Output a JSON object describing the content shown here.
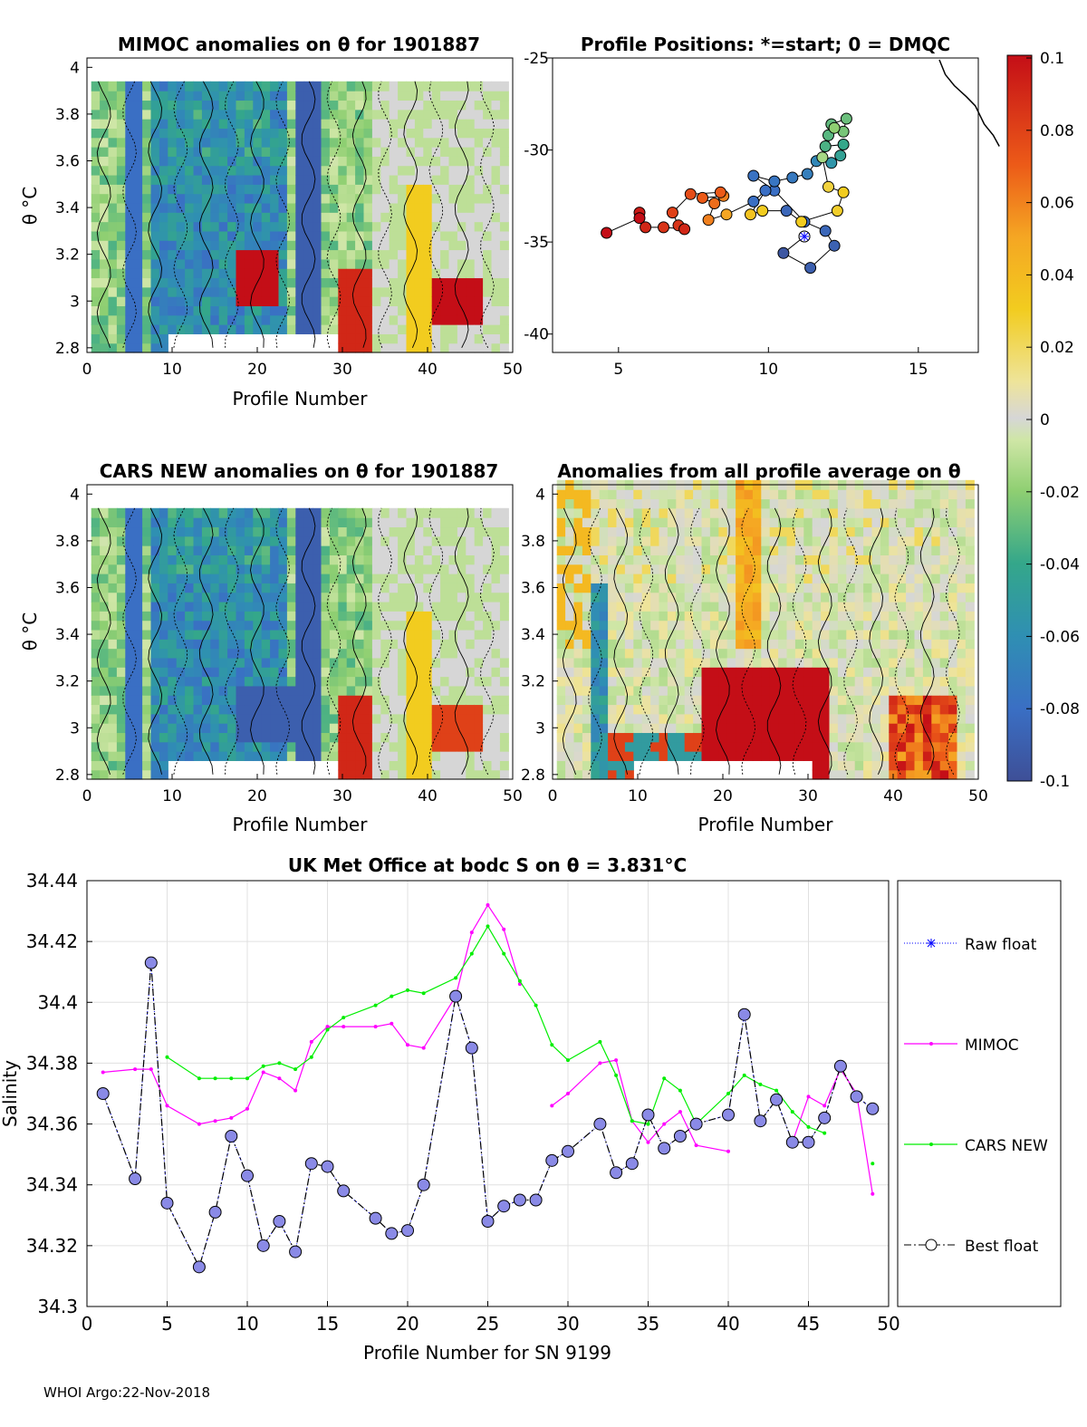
{
  "colors": {
    "raw_float": "#0000ff",
    "mimoc": "#ff00ff",
    "cars": "#00ee00",
    "best": "#000000",
    "marker_fill": "#8a8ae6"
  },
  "footer": "WHOI Argo:22-Nov-2018",
  "panels": {
    "mimoc": {
      "title": "MIMOC anomalies on θ  for 1901887",
      "xlabel": "Profile Number",
      "ylabel": "θ °C",
      "xticks": [
        "0",
        "10",
        "20",
        "30",
        "40",
        "50"
      ],
      "yticks": [
        "4",
        "3.8",
        "3.6",
        "3.4",
        "3.2",
        "3",
        "2.8"
      ]
    },
    "positions": {
      "title": "Profile Positions: *=start; 0 = DMQC",
      "xticks": [
        "5",
        "10",
        "15"
      ],
      "yticks": [
        "-25",
        "-30",
        "-35",
        "-40"
      ]
    },
    "cars": {
      "title": "CARS NEW anomalies on θ for 1901887",
      "xlabel": "Profile Number",
      "ylabel": "θ °C",
      "xticks": [
        "0",
        "10",
        "20",
        "30",
        "40",
        "50"
      ],
      "yticks": [
        "4",
        "3.8",
        "3.6",
        "3.4",
        "3.2",
        "3",
        "2.8"
      ]
    },
    "avg": {
      "title": "Anomalies from all profile average on θ",
      "xlabel": "Profile Number",
      "xticks": [
        "0",
        "10",
        "20",
        "30",
        "40",
        "50"
      ],
      "yticks": [
        "4",
        "3.8",
        "3.6",
        "3.4",
        "3.2",
        "3",
        "2.8"
      ]
    }
  },
  "colorbar": {
    "ticks": [
      "0.1",
      "0.08",
      "0.06",
      "0.04",
      "0.02",
      "0",
      "-0.02",
      "-0.04",
      "-0.06",
      "-0.08",
      "-0.1"
    ]
  },
  "chart_data": [
    {
      "type": "heatmap",
      "title": "MIMOC anomalies on θ  for 1901887",
      "xlabel": "Profile Number",
      "ylabel": "θ °C",
      "xlim": [
        0,
        50
      ],
      "ylim": [
        2.78,
        4.04
      ],
      "clim": [
        -0.1,
        0.1
      ]
    },
    {
      "type": "scatter",
      "title": "Profile Positions: *=start; 0 = DMQC",
      "xlim": [
        2.8,
        17
      ],
      "ylim": [
        -41,
        -25
      ],
      "start": [
        11.2,
        -34.7
      ],
      "coast": [
        [
          15.7,
          -25.1
        ],
        [
          15.9,
          -25.9
        ],
        [
          16.2,
          -26.5
        ],
        [
          16.6,
          -27.1
        ],
        [
          16.9,
          -27.6
        ],
        [
          17.2,
          -28.6
        ],
        [
          17.5,
          -29.2
        ],
        [
          17.7,
          -29.8
        ]
      ],
      "track": [
        [
          11.2,
          -34.7,
          -0.1
        ],
        [
          10.5,
          -35.6,
          -0.095
        ],
        [
          11.4,
          -36.4,
          -0.09
        ],
        [
          12.2,
          -35.2,
          -0.088
        ],
        [
          11.9,
          -34.4,
          -0.085
        ],
        [
          11.2,
          -33.9,
          -0.083
        ],
        [
          10.2,
          -32.2,
          -0.08
        ],
        [
          9.5,
          -31.4,
          -0.078
        ],
        [
          10.2,
          -31.7,
          -0.076
        ],
        [
          10.8,
          -31.5,
          -0.074
        ],
        [
          11.3,
          -31.3,
          -0.07
        ],
        [
          11.6,
          -30.6,
          -0.065
        ],
        [
          12.1,
          -30.7,
          -0.055
        ],
        [
          12.4,
          -30.3,
          -0.045
        ],
        [
          12.5,
          -29.7,
          -0.04
        ],
        [
          11.9,
          -29.8,
          -0.035
        ],
        [
          12.0,
          -29.2,
          -0.032
        ],
        [
          12.1,
          -28.6,
          -0.03
        ],
        [
          12.6,
          -28.3,
          -0.028
        ],
        [
          12.5,
          -29.0,
          -0.025
        ],
        [
          12.2,
          -28.8,
          -0.02
        ],
        [
          11.8,
          -30.4,
          -0.015
        ],
        [
          12.0,
          -32.0,
          0.025
        ],
        [
          12.5,
          -32.3,
          0.03
        ],
        [
          12.3,
          -33.3,
          0.028
        ],
        [
          11.1,
          -33.9,
          0.03
        ],
        [
          10.6,
          -33.3,
          -0.085
        ],
        [
          9.8,
          -33.3,
          0.03
        ],
        [
          9.4,
          -33.5,
          0.035
        ],
        [
          9.9,
          -32.2,
          -0.08
        ],
        [
          9.5,
          -32.8,
          -0.08
        ],
        [
          8.6,
          -33.5,
          0.05
        ],
        [
          8.0,
          -33.8,
          0.06
        ],
        [
          8.2,
          -32.9,
          0.065
        ],
        [
          7.8,
          -32.6,
          0.07
        ],
        [
          8.5,
          -32.5,
          0.06
        ],
        [
          8.4,
          -32.3,
          0.07
        ],
        [
          7.4,
          -32.4,
          0.075
        ],
        [
          6.8,
          -33.4,
          0.08
        ],
        [
          7.0,
          -34.1,
          0.085
        ],
        [
          7.2,
          -34.3,
          0.09
        ],
        [
          6.5,
          -34.2,
          0.085
        ],
        [
          5.9,
          -34.2,
          0.09
        ],
        [
          5.7,
          -33.4,
          0.095
        ],
        [
          5.7,
          -33.7,
          0.1
        ],
        [
          4.6,
          -34.5,
          0.1
        ]
      ]
    },
    {
      "type": "heatmap",
      "title": "CARS NEW anomalies on θ for 1901887",
      "xlabel": "Profile Number",
      "ylabel": "θ °C",
      "xlim": [
        0,
        50
      ],
      "ylim": [
        2.78,
        4.04
      ],
      "clim": [
        -0.1,
        0.1
      ]
    },
    {
      "type": "heatmap",
      "title": "Anomalies from all profile average on θ",
      "xlabel": "Profile Number",
      "xlim": [
        0,
        50
      ],
      "ylim": [
        2.78,
        4.04
      ],
      "clim": [
        -0.1,
        0.1
      ]
    },
    {
      "type": "line",
      "title": "UK Met Office at bodc S on θ = 3.831°C",
      "xlabel": "Profile Number for SN 9199",
      "ylabel": "Salinity",
      "xlim": [
        0,
        50
      ],
      "ylim": [
        34.3,
        34.44
      ],
      "xticks": [
        "0",
        "5",
        "10",
        "15",
        "20",
        "25",
        "30",
        "35",
        "40",
        "45",
        "50"
      ],
      "yticks": [
        "34.44",
        "34.42",
        "34.4",
        "34.38",
        "34.36",
        "34.34",
        "34.32",
        "34.3"
      ],
      "legend": [
        "Raw float",
        "MIMOC",
        "CARS NEW",
        "Best float"
      ],
      "series": [
        {
          "name": "Raw float",
          "x": [
            1,
            3,
            4,
            5,
            7,
            8,
            9,
            10,
            11,
            12,
            13,
            14,
            15,
            16,
            18,
            19,
            20,
            21,
            23,
            24,
            25,
            26,
            27,
            28,
            29,
            30,
            32,
            33,
            34,
            35,
            36,
            37,
            38,
            40,
            41,
            42,
            43,
            44,
            45,
            46,
            47,
            48,
            49
          ],
          "values": [
            34.37,
            34.342,
            34.413,
            34.334,
            34.313,
            34.331,
            34.356,
            34.343,
            34.32,
            34.328,
            34.318,
            34.347,
            34.346,
            34.338,
            34.329,
            34.324,
            34.325,
            34.34,
            34.402,
            34.385,
            34.328,
            34.333,
            34.335,
            34.335,
            34.348,
            34.351,
            34.36,
            34.344,
            34.347,
            34.363,
            34.352,
            34.356,
            34.36,
            34.363,
            34.396,
            34.361,
            34.368,
            34.354,
            34.354,
            34.362,
            34.379,
            34.369,
            34.365
          ]
        },
        {
          "name": "MIMOC",
          "x": [
            1,
            3,
            4,
            5,
            7,
            8,
            9,
            10,
            11,
            12,
            13,
            14,
            15,
            16,
            18,
            19,
            20,
            21,
            23,
            24,
            25,
            26,
            27,
            null,
            29,
            30,
            32,
            33,
            34,
            35,
            36,
            37,
            38,
            40,
            null,
            44,
            45,
            46,
            47,
            48,
            49
          ],
          "values": [
            34.377,
            34.378,
            34.378,
            34.366,
            34.36,
            34.361,
            34.362,
            34.365,
            34.377,
            34.375,
            34.371,
            34.387,
            34.392,
            34.392,
            34.392,
            34.393,
            34.386,
            34.385,
            34.402,
            34.423,
            34.432,
            34.424,
            34.406,
            null,
            34.366,
            34.37,
            34.38,
            34.381,
            34.361,
            34.354,
            34.36,
            34.364,
            34.353,
            34.351,
            null,
            34.354,
            34.369,
            34.366,
            34.378,
            34.37,
            34.337
          ]
        },
        {
          "name": "CARS NEW",
          "x": [
            5,
            7,
            8,
            9,
            10,
            11,
            12,
            13,
            14,
            15,
            16,
            18,
            19,
            20,
            21,
            23,
            24,
            25,
            26,
            27,
            28,
            29,
            30,
            32,
            33,
            34,
            35,
            36,
            37,
            38,
            40,
            41,
            42,
            43,
            44,
            45,
            46,
            null,
            49
          ],
          "values": [
            34.382,
            34.375,
            34.375,
            34.375,
            34.375,
            34.379,
            34.38,
            34.378,
            34.382,
            34.391,
            34.395,
            34.399,
            34.402,
            34.404,
            34.403,
            34.408,
            34.416,
            34.425,
            34.416,
            34.407,
            34.399,
            34.386,
            34.381,
            34.387,
            34.376,
            34.361,
            34.36,
            34.375,
            34.371,
            34.36,
            34.37,
            34.376,
            34.373,
            34.371,
            34.364,
            34.359,
            34.357,
            null,
            34.347
          ]
        },
        {
          "name": "Best float",
          "x": [
            1,
            3,
            4,
            5,
            7,
            8,
            9,
            10,
            11,
            12,
            13,
            14,
            15,
            16,
            18,
            19,
            20,
            21,
            23,
            24,
            25,
            26,
            27,
            28,
            29,
            30,
            32,
            33,
            34,
            35,
            36,
            37,
            38,
            40,
            41,
            42,
            43,
            44,
            45,
            46,
            47,
            48,
            49
          ],
          "values": [
            34.37,
            34.342,
            34.413,
            34.334,
            34.313,
            34.331,
            34.356,
            34.343,
            34.32,
            34.328,
            34.318,
            34.347,
            34.346,
            34.338,
            34.329,
            34.324,
            34.325,
            34.34,
            34.402,
            34.385,
            34.328,
            34.333,
            34.335,
            34.335,
            34.348,
            34.351,
            34.36,
            34.344,
            34.347,
            34.363,
            34.352,
            34.356,
            34.36,
            34.363,
            34.396,
            34.361,
            34.368,
            34.354,
            34.354,
            34.362,
            34.379,
            34.369,
            34.365
          ]
        }
      ]
    }
  ]
}
